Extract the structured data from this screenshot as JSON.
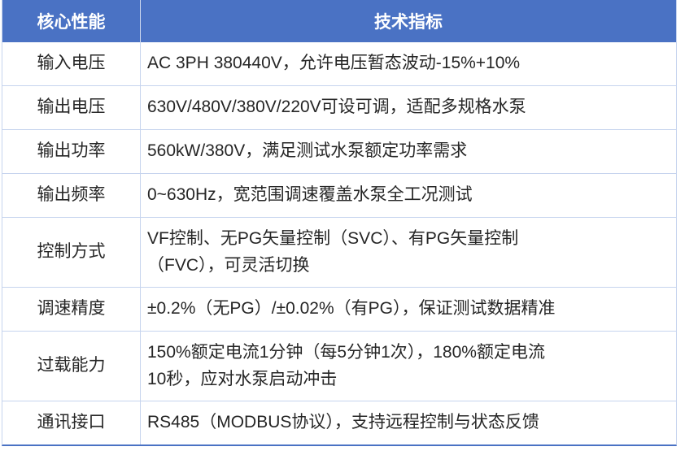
{
  "table": {
    "header": {
      "col1": "核心性能",
      "col2": "技术指标"
    },
    "rows": [
      {
        "label": "输入电压",
        "value": "AC 3PH 380440V，允许电压暂态波动-15%+10%"
      },
      {
        "label": "输出电压",
        "value": "630V/480V/380V/220V可设可调，适配多规格水泵"
      },
      {
        "label": "输出功率",
        "value": "560kW/380V，满足测试水泵额定功率需求"
      },
      {
        "label": "输出频率",
        "value": "0~630Hz，宽范围调速覆盖水泵全工况测试"
      },
      {
        "label": "控制方式",
        "value": "VF控制、无PG矢量控制（SVC）、有PG矢量控制\n（FVC），可灵活切换"
      },
      {
        "label": "调速精度",
        "value": "±0.2%（无PG）/±0.02%（有PG），保证测试数据精准"
      },
      {
        "label": "过载能力",
        "value": "150%额定电流1分钟（每5分钟1次），180%额定电流\n10秒，应对水泵启动冲击"
      },
      {
        "label": "通讯接口",
        "value": "RS485（MODBUS协议），支持远程控制与状态反馈"
      }
    ],
    "colors": {
      "header_bg": "#4a72c4",
      "header_text": "#ffffff",
      "grid_line": "#c6d4ee",
      "body_text": "#262626",
      "bottom_border": "#4a72c4"
    }
  }
}
